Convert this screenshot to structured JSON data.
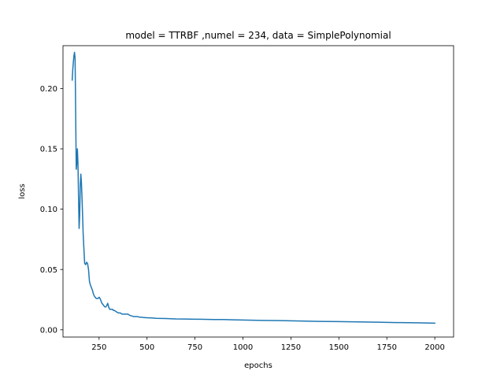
{
  "chart_data": {
    "type": "line",
    "title": "model = TTRBF ,numel = 234, data = SimplePolynomial",
    "xlabel": "epochs",
    "ylabel": "loss",
    "xlim": [
      62,
      2098
    ],
    "ylim": [
      -0.006,
      0.2355
    ],
    "xticks": [
      250,
      500,
      750,
      1000,
      1250,
      1500,
      1750,
      2000
    ],
    "xtick_labels": [
      "250",
      "500",
      "750",
      "1000",
      "1250",
      "1500",
      "1750",
      "2000"
    ],
    "yticks": [
      0.0,
      0.05,
      0.1,
      0.15,
      0.2
    ],
    "ytick_labels": [
      "0.00",
      "0.05",
      "0.10",
      "0.15",
      "0.20"
    ],
    "grid": false,
    "legend": "none",
    "series": [
      {
        "color": "#1f77b4",
        "x": [
          110,
          113,
          116,
          119,
          122,
          125,
          128,
          131,
          134,
          137,
          140,
          143,
          146,
          149,
          152,
          155,
          158,
          161,
          164,
          167,
          170,
          175,
          180,
          185,
          190,
          195,
          200,
          205,
          210,
          215,
          220,
          225,
          230,
          235,
          240,
          245,
          250,
          255,
          260,
          265,
          270,
          275,
          280,
          285,
          290,
          295,
          300,
          305,
          310,
          315,
          320,
          325,
          330,
          340,
          350,
          360,
          370,
          380,
          390,
          400,
          410,
          420,
          430,
          440,
          450,
          460,
          470,
          480,
          490,
          500,
          525,
          550,
          575,
          600,
          650,
          700,
          750,
          800,
          850,
          900,
          950,
          1000,
          1100,
          1200,
          1300,
          1400,
          1500,
          1600,
          1700,
          1800,
          1900,
          2000
        ],
        "y": [
          0.207,
          0.216,
          0.222,
          0.227,
          0.23,
          0.225,
          0.18,
          0.133,
          0.138,
          0.15,
          0.138,
          0.11,
          0.084,
          0.095,
          0.12,
          0.129,
          0.122,
          0.11,
          0.095,
          0.08,
          0.07,
          0.055,
          0.054,
          0.056,
          0.055,
          0.05,
          0.04,
          0.037,
          0.035,
          0.033,
          0.03,
          0.028,
          0.027,
          0.026,
          0.026,
          0.026,
          0.027,
          0.026,
          0.024,
          0.022,
          0.021,
          0.02,
          0.019,
          0.019,
          0.02,
          0.022,
          0.019,
          0.017,
          0.017,
          0.017,
          0.017,
          0.016,
          0.016,
          0.015,
          0.014,
          0.014,
          0.013,
          0.013,
          0.013,
          0.013,
          0.012,
          0.0115,
          0.011,
          0.011,
          0.011,
          0.0105,
          0.0105,
          0.0102,
          0.0101,
          0.01,
          0.0098,
          0.0095,
          0.0094,
          0.0093,
          0.009,
          0.0089,
          0.0088,
          0.0087,
          0.0085,
          0.0085,
          0.0083,
          0.0081,
          0.0078,
          0.0076,
          0.0073,
          0.007,
          0.0068,
          0.0066,
          0.0063,
          0.006,
          0.0058,
          0.0055
        ]
      }
    ]
  }
}
